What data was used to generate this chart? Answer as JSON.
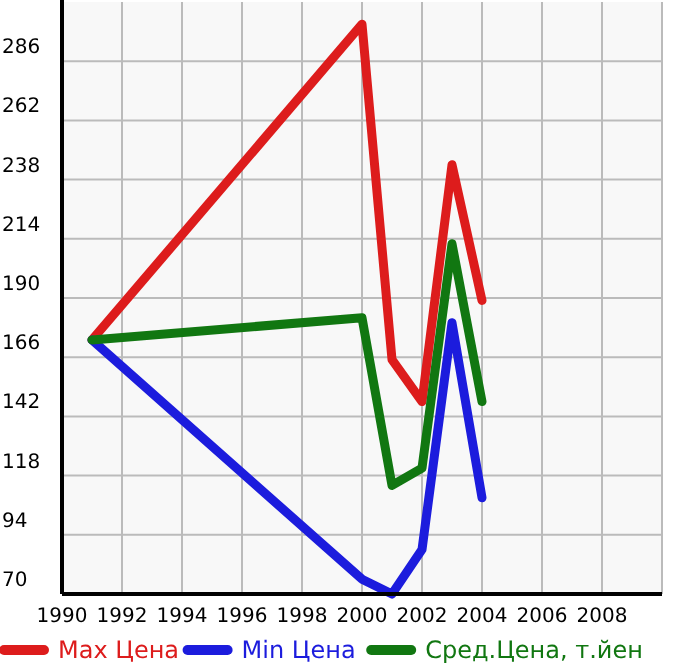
{
  "chart_data": {
    "type": "line",
    "x": [
      1991,
      2000,
      2001,
      2002,
      2003,
      2004
    ],
    "series": [
      {
        "name": "Max Цена",
        "color": "#dd1c1c",
        "values": [
          173,
          301,
          165,
          148,
          244,
          189
        ]
      },
      {
        "name": "Min Цена",
        "color": "#1c1cdd",
        "values": [
          173,
          76,
          70,
          88,
          180,
          109
        ]
      },
      {
        "name": "Сред.Цена, т.йен",
        "color": "#117711",
        "values": [
          173,
          182,
          114,
          121,
          212,
          148
        ]
      }
    ],
    "xlim": [
      1990,
      2010
    ],
    "xticks": [
      1990,
      1992,
      1994,
      1996,
      1998,
      2000,
      2002,
      2004,
      2006,
      2008
    ],
    "ylim": [
      70,
      310
    ],
    "yticks": [
      70,
      94,
      118,
      142,
      166,
      190,
      214,
      238,
      262,
      286
    ],
    "grid": true,
    "legend": "bottom",
    "marker": "none",
    "line_style": "solid"
  }
}
